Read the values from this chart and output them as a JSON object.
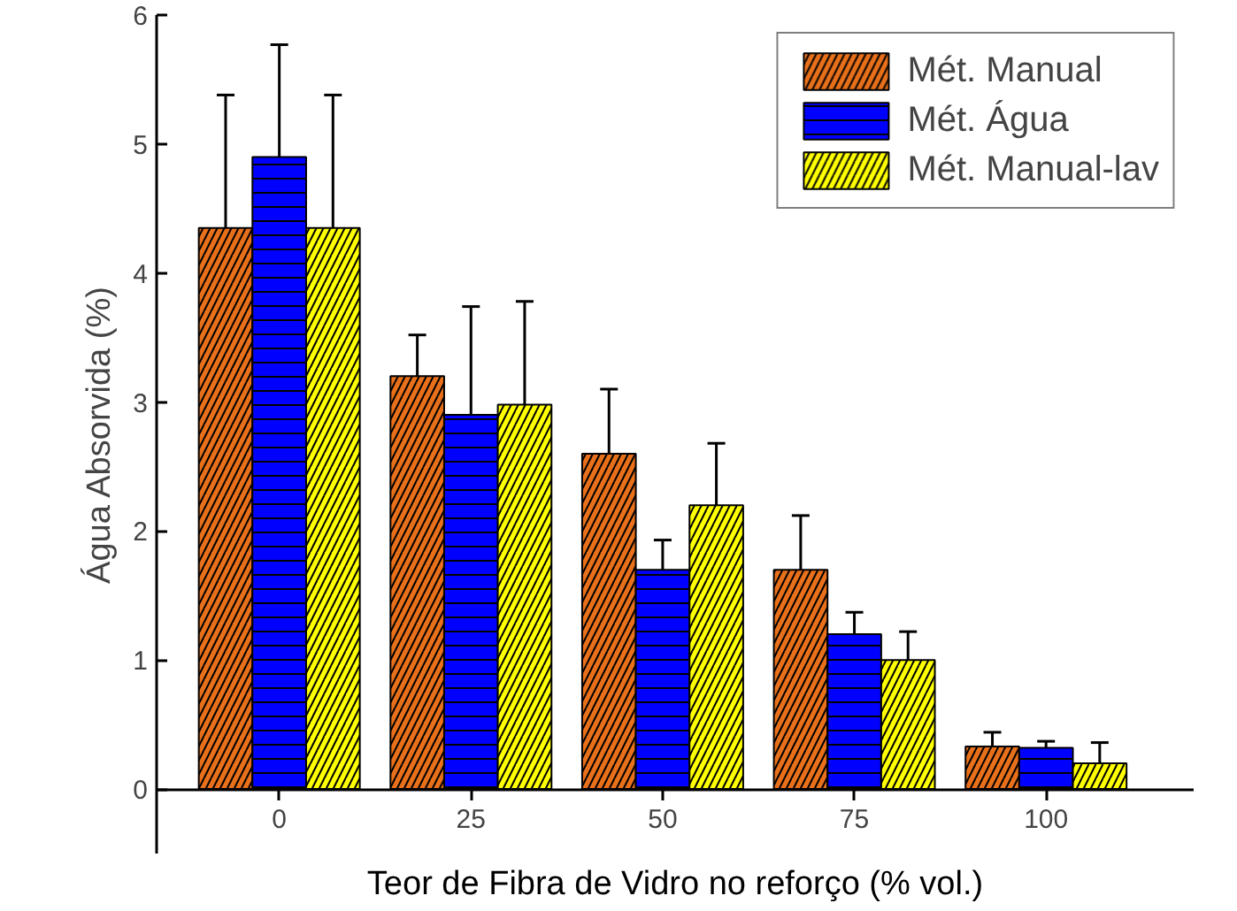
{
  "chart_data": {
    "type": "bar",
    "xlabel": "Teor de Fibra de Vidro no reforço (% vol.)",
    "ylabel": "Água Absorvida (%)",
    "categories": [
      "0",
      "25",
      "50",
      "75",
      "100"
    ],
    "series": [
      {
        "name": "Mét. Manual",
        "color": "#e8701a",
        "values": [
          4.35,
          3.2,
          2.6,
          1.7,
          0.33
        ],
        "errors": [
          [
            3.33,
            5.38
          ],
          [
            2.9,
            3.52
          ],
          [
            2.1,
            3.1
          ],
          [
            1.3,
            2.12
          ],
          [
            0.22,
            0.44
          ]
        ]
      },
      {
        "name": "Mét. Água",
        "color": "#0000ff",
        "values": [
          4.9,
          2.9,
          1.7,
          1.2,
          0.32
        ],
        "errors": [
          [
            4.05,
            5.77
          ],
          [
            2.07,
            3.74
          ],
          [
            1.45,
            1.93
          ],
          [
            1.07,
            1.37
          ],
          [
            0.26,
            0.37
          ]
        ]
      },
      {
        "name": "Mét. Manual-lav",
        "color": "#ffff00",
        "values": [
          4.35,
          2.98,
          2.2,
          1.0,
          0.2
        ],
        "errors": [
          [
            3.33,
            5.38
          ],
          [
            2.18,
            3.78
          ],
          [
            1.72,
            2.68
          ],
          [
            0.78,
            1.22
          ],
          [
            0.06,
            0.36
          ]
        ]
      }
    ],
    "ylim": [
      -0.5,
      6
    ],
    "yticks": [
      0,
      1,
      2,
      3,
      4,
      5,
      6
    ],
    "grid": false,
    "legend": "top right"
  }
}
